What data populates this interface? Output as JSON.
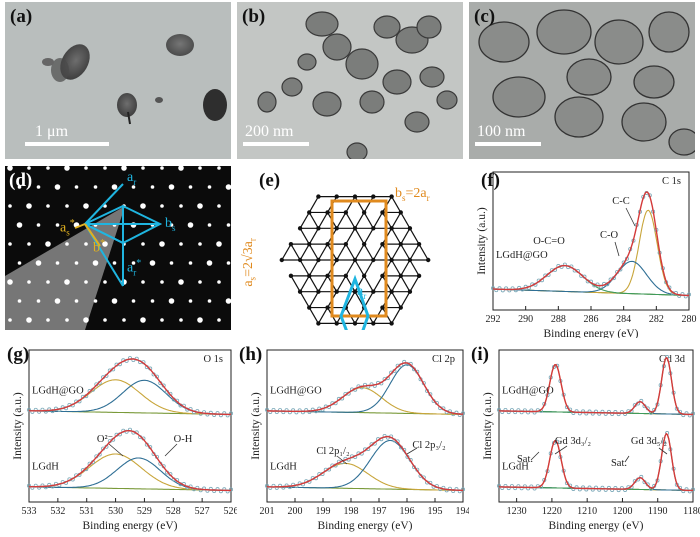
{
  "panels": {
    "a": {
      "label": "(a)",
      "scale": "1 μm"
    },
    "b": {
      "label": "(b)",
      "scale": "200 nm"
    },
    "c": {
      "label": "(c)",
      "scale": "100 nm"
    },
    "d": {
      "label": "(d)",
      "ar": "a",
      "ar_sub": "r",
      "as": "a",
      "as_sub": "s",
      "asuper": "*",
      "ar_star": "a",
      "ar_star_sub": "r",
      "ar_star_sup": "*",
      "b": "b",
      "bs": "b",
      "bs_sub": "s",
      "bsuper": "*"
    },
    "e": {
      "label": "(e)",
      "bs_rel": "b",
      "bs_sub": "s",
      "bs_eq": "=2a",
      "bs_r": "r",
      "as_rel": "a",
      "as_sub": "s",
      "as_eq": "=2√3a",
      "as_r": "r",
      "ar": "a",
      "ar_sub": "r"
    },
    "f": {
      "label": "(f)"
    },
    "g": {
      "label": "(g)"
    },
    "h": {
      "label": "(h)"
    },
    "i": {
      "label": "(i)"
    }
  },
  "colors": {
    "fit": "#e0262b",
    "data": "#7aa8b8",
    "envelope": "#d43a3a",
    "c1": "#2f6f95",
    "c2": "#c8a53a",
    "c3": "#3f9a5a",
    "bg": "#7a9a3a",
    "cyan": "#1fb5e0",
    "orange": "#e08a1e"
  },
  "chart_data": [
    {
      "id": "f",
      "type": "line",
      "title": "C 1s",
      "xlabel": "Binding energy (eV)",
      "ylabel": "Intensity (a.u.)",
      "xlim": [
        292,
        280
      ],
      "xticks": [
        292,
        290,
        288,
        286,
        284,
        282,
        280
      ],
      "sample": "LGdH@GO",
      "peaks": [
        {
          "name": "C-C",
          "center": 282.5,
          "height": 0.78,
          "width": 0.55
        },
        {
          "name": "C-O",
          "center": 283.5,
          "height": 0.3,
          "width": 0.9
        },
        {
          "name": "O-C=O",
          "center": 287.6,
          "height": 0.24,
          "width": 1.1
        }
      ],
      "annotations": [
        "C-C",
        "C-O",
        "O-C=O"
      ]
    },
    {
      "id": "g",
      "type": "line",
      "title": "O 1s",
      "xlabel": "Binding energy (eV)",
      "ylabel": "Intensity (a.u.)",
      "xlim": [
        533,
        526
      ],
      "xticks": [
        533,
        532,
        531,
        530,
        529,
        528,
        527,
        526
      ],
      "spectra": [
        {
          "sample": "LGdH@GO",
          "peaks": [
            {
              "name": "O²⁻",
              "center": 530.0,
              "height": 0.55,
              "width": 0.85
            },
            {
              "name": "O-H",
              "center": 529.0,
              "height": 0.55,
              "width": 0.75
            }
          ]
        },
        {
          "sample": "LGdH",
          "peaks": [
            {
              "name": "O²⁻",
              "center": 530.0,
              "height": 0.58,
              "width": 0.9
            },
            {
              "name": "O-H",
              "center": 529.2,
              "height": 0.52,
              "width": 0.75
            }
          ]
        }
      ],
      "annotations": [
        "O²⁻",
        "O-H"
      ]
    },
    {
      "id": "h",
      "type": "line",
      "title": "Cl 2p",
      "xlabel": "Binding energy (eV)",
      "ylabel": "Intensity (a.u.)",
      "xlim": [
        201,
        194
      ],
      "xticks": [
        201,
        200,
        199,
        198,
        197,
        196,
        195,
        194
      ],
      "spectra": [
        {
          "sample": "LGdH@GO",
          "peaks": [
            {
              "name": "Cl 2p1/2",
              "center": 197.6,
              "height": 0.42,
              "width": 0.7
            },
            {
              "name": "Cl 2p3/2",
              "center": 196.0,
              "height": 0.82,
              "width": 0.6
            }
          ]
        },
        {
          "sample": "LGdH",
          "peaks": [
            {
              "name": "Cl 2p1/2",
              "center": 198.2,
              "height": 0.42,
              "width": 0.8
            },
            {
              "name": "Cl 2p3/2",
              "center": 196.6,
              "height": 0.82,
              "width": 0.7
            }
          ]
        }
      ],
      "annotations": [
        "Cl 2p1/2",
        "Cl 2p3/2"
      ]
    },
    {
      "id": "i",
      "type": "line",
      "title": "Gd 3d",
      "xlabel": "Binding energy (eV)",
      "ylabel": "Intensity (a.u.)",
      "xlim": [
        1235,
        1180
      ],
      "xticks": [
        1230,
        1220,
        1210,
        1200,
        1190,
        1180
      ],
      "spectra": [
        {
          "sample": "LGdH@GO",
          "peaks": [
            {
              "name": "Gd 3d3/2",
              "center": 1219,
              "height": 0.8,
              "width": 1.6
            },
            {
              "name": "Sat.",
              "center": 1195,
              "height": 0.2,
              "width": 1.5
            },
            {
              "name": "Gd 3d5/2",
              "center": 1187.5,
              "height": 0.95,
              "width": 1.4
            }
          ]
        },
        {
          "sample": "LGdH",
          "peaks": [
            {
              "name": "Gd 3d3/2",
              "center": 1219,
              "height": 0.8,
              "width": 1.6
            },
            {
              "name": "Sat.",
              "center": 1195,
              "height": 0.2,
              "width": 1.5
            },
            {
              "name": "Gd 3d5/2",
              "center": 1187.5,
              "height": 0.95,
              "width": 1.4
            }
          ]
        }
      ],
      "annotations": [
        "Sat.",
        "Gd 3d3/2",
        "Gd 3d5/2"
      ]
    }
  ]
}
